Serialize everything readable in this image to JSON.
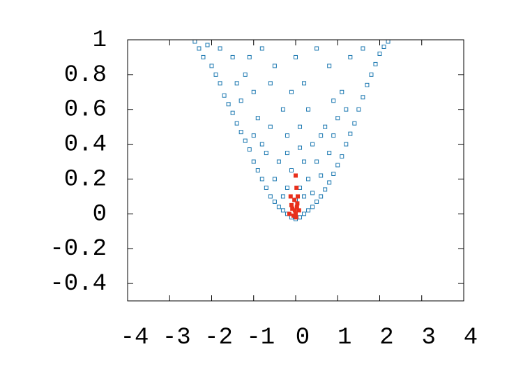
{
  "chart_data": {
    "type": "scatter",
    "xlim": [
      -4,
      4
    ],
    "xticks": [
      -4,
      -3,
      -2,
      -1,
      0,
      1,
      2,
      3,
      4
    ],
    "ylim": [
      -0.5,
      1
    ],
    "yticks": [
      -0.4,
      -0.2,
      0,
      0.2,
      0.4,
      0.6,
      0.8,
      1
    ],
    "series": [
      {
        "color": "#1a77b0",
        "marker": "open-square",
        "x": [
          -2.4,
          -2.3,
          -2.2,
          -2.1,
          -2.0,
          -1.9,
          -1.8,
          -1.7,
          -1.6,
          -1.5,
          -1.4,
          -1.3,
          -1.2,
          -1.1,
          -1.0,
          -0.9,
          -0.8,
          -0.7,
          -0.6,
          -0.5,
          -0.4,
          -0.3,
          -0.2,
          -0.1,
          0,
          0.1,
          0.2,
          0.3,
          0.4,
          0.5,
          0.6,
          0.7,
          0.8,
          0.9,
          1.0,
          1.1,
          1.2,
          1.3,
          1.4,
          1.5,
          1.6,
          1.7,
          1.8,
          1.9,
          2.0,
          2.1,
          2.2,
          -1.5,
          -1.2,
          -1.0,
          -0.8,
          -0.5,
          -0.3,
          0,
          0.2,
          0.5,
          0.8,
          1.1,
          1.3,
          1.0,
          0.7,
          0.4,
          0.1,
          -0.2,
          -0.6,
          -0.9,
          -1.3,
          -0.7,
          -0.4,
          -0.1,
          0.2,
          0.5,
          0.8,
          -0.5,
          -0.2,
          0.1,
          0.3,
          0.6,
          -0.3,
          0,
          0.2,
          0.4,
          -1.1,
          -1.8,
          1.6,
          0.9,
          -0.1,
          -0.6,
          0.3,
          1.2,
          -1.0,
          0.6,
          -0.8,
          -0.2,
          0.1,
          0.9,
          -1.4
        ],
        "values": [
          0.99,
          0.95,
          0.9,
          0.97,
          0.85,
          0.8,
          0.75,
          0.68,
          0.63,
          0.58,
          0.52,
          0.47,
          0.42,
          0.37,
          0.3,
          0.25,
          0.2,
          0.15,
          0.1,
          0.07,
          0.04,
          0.02,
          0.0,
          -0.02,
          -0.03,
          -0.02,
          0.0,
          0.02,
          0.04,
          0.07,
          0.1,
          0.14,
          0.18,
          0.23,
          0.28,
          0.33,
          0.4,
          0.46,
          0.52,
          0.6,
          0.67,
          0.74,
          0.8,
          0.86,
          0.92,
          0.96,
          0.99,
          0.9,
          0.8,
          0.7,
          0.95,
          0.85,
          0.6,
          0.9,
          0.75,
          0.95,
          0.85,
          0.7,
          0.9,
          0.55,
          0.5,
          0.4,
          0.5,
          0.45,
          0.5,
          0.55,
          0.65,
          0.35,
          0.3,
          0.25,
          0.3,
          0.3,
          0.35,
          0.2,
          0.15,
          0.15,
          0.2,
          0.22,
          0.1,
          0.08,
          0.1,
          0.12,
          0.9,
          0.95,
          0.95,
          0.65,
          0.7,
          0.75,
          0.6,
          0.6,
          0.45,
          0.45,
          0.4,
          0.35,
          0.38,
          0.45,
          0.75
        ]
      },
      {
        "color": "#e8301c",
        "marker": "filled-square",
        "x": [
          -0.1,
          0,
          0.05,
          -0.05,
          0.02,
          -0.08,
          0.04,
          -0.02,
          0.0,
          -0.15,
          0.08,
          -0.03,
          0.01,
          -0.12,
          0.03
        ],
        "values": [
          0.05,
          0.0,
          0.1,
          -0.01,
          0.15,
          0.03,
          0.06,
          0.02,
          0.22,
          0.0,
          0.02,
          0.08,
          -0.02,
          0.1,
          0.04
        ]
      }
    ]
  }
}
